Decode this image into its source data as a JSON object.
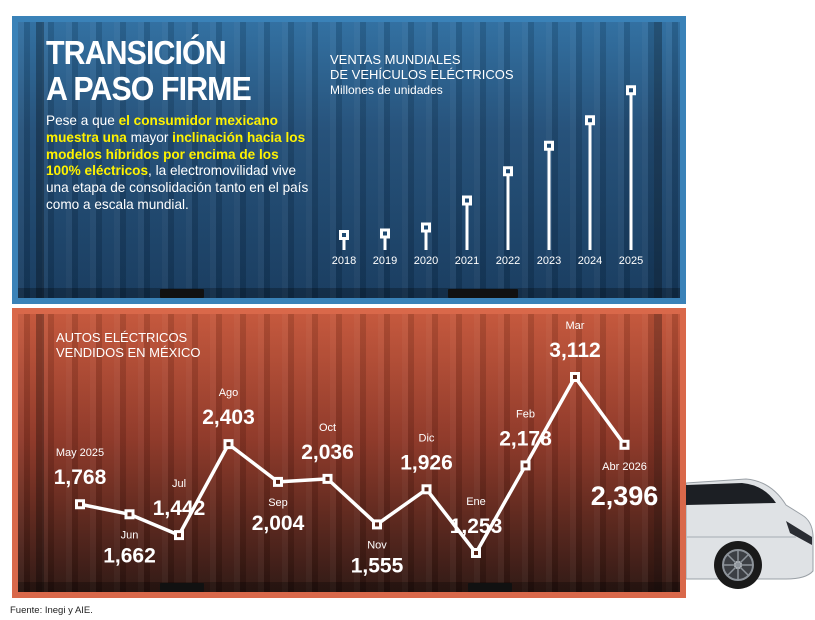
{
  "headline": {
    "line1": "TRANSICIÓN",
    "line2": "A PASO FIRME"
  },
  "intro": {
    "p1": "Pese a que ",
    "h1": "el consumidor mexicano muestra una",
    "p2": " mayor ",
    "h2": "inclinación hacia los modelos híbridos por encima de los 100% eléctricos",
    "p3": ", la electromovilidad vive una etapa de consolidación tanto en el país como a escala mundial."
  },
  "source": "Fuente: Inegi y AIE.",
  "colors": {
    "top_container": "#2f6ea0",
    "bottom_container": "#c4563a",
    "highlight": "#fff200",
    "lines": "#ffffff"
  },
  "chart_data": [
    {
      "type": "bar",
      "title": "VENTAS MUNDIALES\nDE VEHÍCULOS ELÉCTRICOS",
      "subtitle": "Millones de unidades",
      "categories": [
        "2018",
        "2019",
        "2020",
        "2021",
        "2022",
        "2023",
        "2024",
        "2025"
      ],
      "values": [
        2,
        2.2,
        3,
        6.6,
        10.5,
        13.9,
        17.3,
        21.3
      ],
      "ylim": [
        0,
        22
      ],
      "grid": false,
      "legend": "none"
    },
    {
      "type": "line",
      "title": "AUTOS ELÉCTRICOS\nVENDIDOS EN MÉXICO",
      "categories": [
        "May 2025",
        "Jun",
        "Jul",
        "Ago",
        "Sep",
        "Oct",
        "Nov",
        "Dic",
        "Ene",
        "Feb",
        "Mar",
        "Abr 2026"
      ],
      "values": [
        1768,
        1662,
        1442,
        2403,
        2004,
        2036,
        1555,
        1926,
        1253,
        2178,
        3112,
        2396
      ],
      "value_labels": [
        "1,768",
        "1,662",
        "1,442",
        "2,403",
        "2,004",
        "2,036",
        "1,555",
        "1,926",
        "1,253",
        "2,178",
        "3,112",
        "2,396"
      ],
      "ylim": [
        1150,
        3200
      ],
      "grid": false,
      "legend": "none"
    }
  ]
}
